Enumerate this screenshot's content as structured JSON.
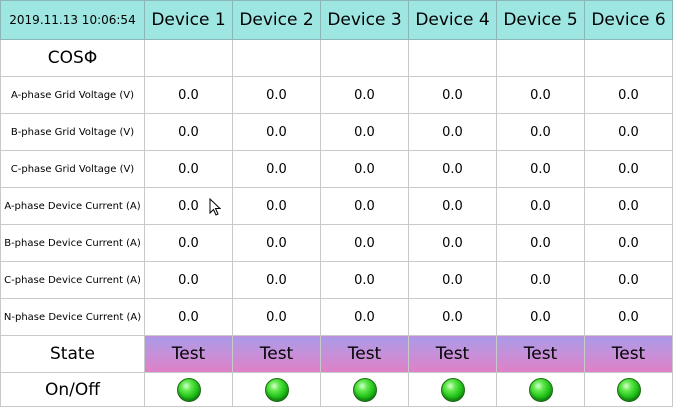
{
  "header": {
    "timestamp": "2019.11.13 10:06:54",
    "devices": [
      "Device 1",
      "Device 2",
      "Device 3",
      "Device 4",
      "Device 5",
      "Device 6"
    ]
  },
  "cos_label": "COSΦ",
  "rows": [
    {
      "label": "A-phase Grid Voltage (V)",
      "values": [
        "0.0",
        "0.0",
        "0.0",
        "0.0",
        "0.0",
        "0.0"
      ]
    },
    {
      "label": "B-phase Grid Voltage (V)",
      "values": [
        "0.0",
        "0.0",
        "0.0",
        "0.0",
        "0.0",
        "0.0"
      ]
    },
    {
      "label": "C-phase Grid Voltage (V)",
      "values": [
        "0.0",
        "0.0",
        "0.0",
        "0.0",
        "0.0",
        "0.0"
      ]
    },
    {
      "label": "A-phase Device Current (A)",
      "values": [
        "0.0",
        "0.0",
        "0.0",
        "0.0",
        "0.0",
        "0.0"
      ]
    },
    {
      "label": "B-phase Device Current (A)",
      "values": [
        "0.0",
        "0.0",
        "0.0",
        "0.0",
        "0.0",
        "0.0"
      ]
    },
    {
      "label": "C-phase Device Current (A)",
      "values": [
        "0.0",
        "0.0",
        "0.0",
        "0.0",
        "0.0",
        "0.0"
      ]
    },
    {
      "label": "N-phase Device Current (A)",
      "values": [
        "0.0",
        "0.0",
        "0.0",
        "0.0",
        "0.0",
        "0.0"
      ]
    }
  ],
  "state": {
    "label": "State",
    "values": [
      "Test",
      "Test",
      "Test",
      "Test",
      "Test",
      "Test"
    ],
    "color": "#c790d8"
  },
  "onoff": {
    "label": "On/Off",
    "indicator_color": "#22c21a",
    "indicator_icon": "green-led-icon"
  },
  "colors": {
    "header_bg": "#9ee6e1"
  }
}
